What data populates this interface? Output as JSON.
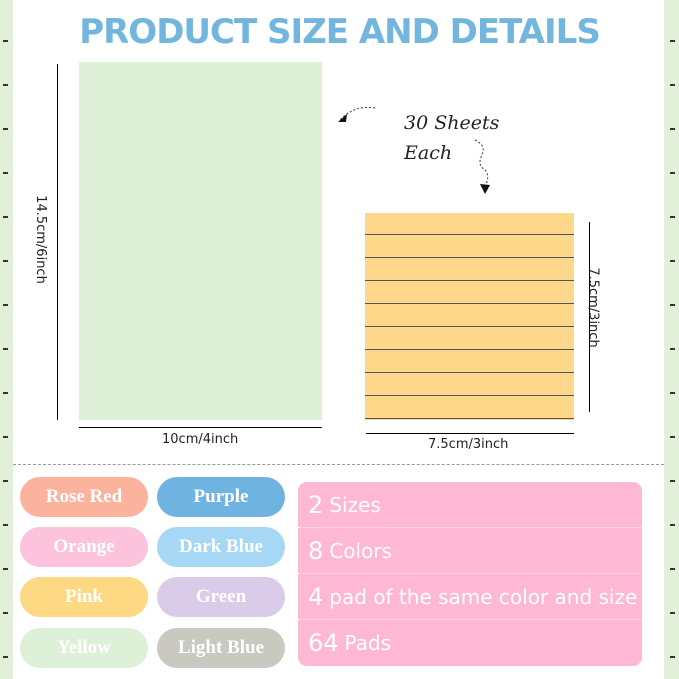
{
  "title": "PRODUCT SIZE AND DETAILS",
  "large_pad": {
    "width": "10cm/4inch",
    "height": "14.5cm/6inch",
    "color": "#dff0d8"
  },
  "small_pad": {
    "width": "7.5cm/3inch",
    "height": "7.5cm/3inch",
    "color": "#fdd88a"
  },
  "sheets_note": {
    "line1": "30 Sheets",
    "line2": "Each"
  },
  "colors": [
    {
      "label": "Rose Red",
      "bg": "#fbb39e"
    },
    {
      "label": "Purple",
      "bg": "#6fb3e0"
    },
    {
      "label": "Orange",
      "bg": "#fdc3dd"
    },
    {
      "label": "Dark Blue",
      "bg": "#a6d8f5"
    },
    {
      "label": "Pink",
      "bg": "#fdd983"
    },
    {
      "label": "Green",
      "bg": "#dacbe9"
    },
    {
      "label": "Yellow",
      "bg": "#dff0d8"
    },
    {
      "label": "Light Blue",
      "bg": "#c9c9c2"
    }
  ],
  "details": [
    {
      "num": "2",
      "text": "Sizes"
    },
    {
      "num": "8",
      "text": "Colors"
    },
    {
      "num": "4",
      "text": "pad of the same color and size"
    },
    {
      "num": "64",
      "text": "Pads"
    }
  ]
}
